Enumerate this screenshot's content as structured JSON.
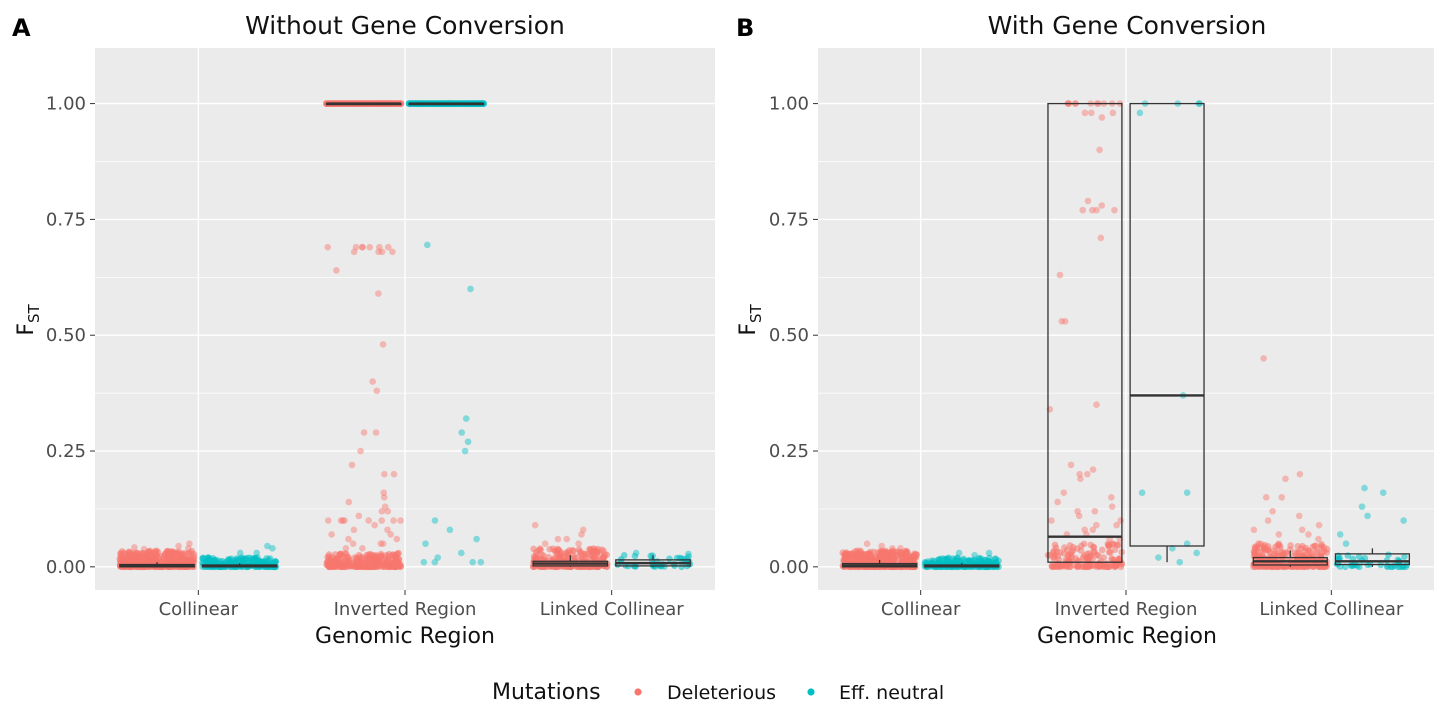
{
  "colors": {
    "deleterious": "#F8766D",
    "neutral": "#00BFC4",
    "panel_bg": "#EBEBEB",
    "grid": "#FFFFFF"
  },
  "legend": {
    "title": "Mutations",
    "items": [
      {
        "label": "Deleterious",
        "color": "#F8766D"
      },
      {
        "label": "Eff. neutral",
        "color": "#00BFC4"
      }
    ]
  },
  "chart_data": [
    {
      "panel": "A",
      "type": "scatter",
      "title": "Without Gene Conversion",
      "xlabel": "Genomic Region",
      "ylabel": "F",
      "ylabel_sub": "ST",
      "categories": [
        "Collinear",
        "Inverted Region",
        "Linked Collinear"
      ],
      "yticks": [
        "0.00",
        "0.25",
        "0.50",
        "0.75",
        "1.00"
      ],
      "ylim": [
        -0.05,
        1.12
      ],
      "series": [
        {
          "name": "Deleterious",
          "groups": [
            {
              "category": "Collinear",
              "offset": -0.2,
              "width": 0.36,
              "cluster": {
                "n": 420,
                "max": 0.035
              },
              "points": [
                0.05,
                0.045,
                0.04,
                0.038,
                0.042
              ]
            },
            {
              "category": "Inverted Region",
              "offset": -0.2,
              "width": 0.36,
              "cluster": {
                "n": 260,
                "max": 0.03
              },
              "points": [
                1.0,
                1.0,
                1.0,
                1.0,
                1.0,
                1.0,
                1.0,
                1.0,
                1.0,
                1.0,
                1.0,
                1.0,
                0.69,
                0.69,
                0.69,
                0.69,
                0.68,
                0.69,
                0.68,
                0.68,
                0.69,
                0.68,
                0.69,
                0.64,
                0.59,
                0.48,
                0.4,
                0.38,
                0.29,
                0.29,
                0.25,
                0.22,
                0.2,
                0.2,
                0.16,
                0.15,
                0.14,
                0.13,
                0.12,
                0.12,
                0.11,
                0.1,
                0.1,
                0.1,
                0.1,
                0.1,
                0.1,
                0.1,
                0.1,
                0.09,
                0.08,
                0.08,
                0.07,
                0.07,
                0.06,
                0.06,
                0.05,
                0.05,
                0.05,
                0.04,
                0.04
              ],
              "median_line": 1.0
            },
            {
              "category": "Linked Collinear",
              "offset": -0.2,
              "width": 0.36,
              "cluster": {
                "n": 260,
                "max": 0.04
              },
              "points": [
                0.09,
                0.08,
                0.07,
                0.06,
                0.06,
                0.05,
                0.05
              ]
            }
          ]
        },
        {
          "name": "Eff. neutral",
          "groups": [
            {
              "category": "Collinear",
              "offset": 0.2,
              "width": 0.36,
              "cluster": {
                "n": 200,
                "max": 0.02
              },
              "points": [
                0.045,
                0.04,
                0.03,
                0.03
              ]
            },
            {
              "category": "Inverted Region",
              "offset": 0.2,
              "width": 0.36,
              "cluster": {
                "n": 0,
                "max": 0
              },
              "points": [
                1.0,
                1.0,
                1.0,
                1.0,
                1.0,
                1.0,
                1.0,
                1.0,
                1.0,
                1.0,
                0.695,
                0.6,
                0.32,
                0.29,
                0.27,
                0.25,
                0.1,
                0.08,
                0.06,
                0.05,
                0.03,
                0.02,
                0.01,
                0.01,
                0.01,
                0.01
              ],
              "median_line": 1.0
            },
            {
              "category": "Linked Collinear",
              "offset": 0.2,
              "width": 0.36,
              "cluster": {
                "n": 40,
                "max": 0.025
              },
              "points": [
                0.03,
                0.028
              ]
            }
          ]
        }
      ],
      "boxes": [
        {
          "category": "Collinear",
          "offset": -0.2,
          "q1": 0.0,
          "median": 0.003,
          "q3": 0.005,
          "whisker_lo": 0.0,
          "whisker_hi": 0.01
        },
        {
          "category": "Collinear",
          "offset": 0.2,
          "q1": 0.0,
          "median": 0.002,
          "q3": 0.004,
          "whisker_lo": 0.0,
          "whisker_hi": 0.008
        },
        {
          "category": "Inverted Region",
          "offset": -0.2,
          "q1": 1.0,
          "median": 1.0,
          "q3": 1.0,
          "whisker_lo": 1.0,
          "whisker_hi": 1.0
        },
        {
          "category": "Inverted Region",
          "offset": 0.2,
          "q1": 1.0,
          "median": 1.0,
          "q3": 1.0,
          "whisker_lo": 1.0,
          "whisker_hi": 1.0
        },
        {
          "category": "Linked Collinear",
          "offset": -0.2,
          "q1": 0.002,
          "median": 0.007,
          "q3": 0.012,
          "whisker_lo": 0.0,
          "whisker_hi": 0.025
        },
        {
          "category": "Linked Collinear",
          "offset": 0.2,
          "q1": 0.002,
          "median": 0.008,
          "q3": 0.015,
          "whisker_lo": 0.0,
          "whisker_hi": 0.025
        }
      ]
    },
    {
      "panel": "B",
      "type": "scatter",
      "title": "With Gene Conversion",
      "xlabel": "Genomic Region",
      "ylabel": "F",
      "ylabel_sub": "ST",
      "categories": [
        "Collinear",
        "Inverted Region",
        "Linked Collinear"
      ],
      "yticks": [
        "0.00",
        "0.25",
        "0.50",
        "0.75",
        "1.00"
      ],
      "ylim": [
        -0.05,
        1.12
      ],
      "series": [
        {
          "name": "Deleterious",
          "groups": [
            {
              "category": "Collinear",
              "offset": -0.2,
              "width": 0.36,
              "cluster": {
                "n": 420,
                "max": 0.035
              },
              "points": [
                0.05,
                0.045,
                0.04,
                0.04
              ]
            },
            {
              "category": "Inverted Region",
              "offset": -0.2,
              "width": 0.36,
              "cluster": {
                "n": 150,
                "max": 0.05
              },
              "points": [
                1.0,
                1.0,
                1.0,
                1.0,
                1.0,
                1.0,
                1.0,
                1.0,
                1.0,
                1.0,
                1.0,
                0.98,
                0.98,
                0.98,
                0.97,
                0.9,
                0.79,
                0.78,
                0.77,
                0.77,
                0.77,
                0.77,
                0.71,
                0.63,
                0.53,
                0.53,
                0.35,
                0.34,
                0.22,
                0.21,
                0.2,
                0.2,
                0.19,
                0.16,
                0.15,
                0.14,
                0.13,
                0.12,
                0.12,
                0.11,
                0.1,
                0.1,
                0.09,
                0.09,
                0.08,
                0.08,
                0.07,
                0.07,
                0.06,
                0.06
              ]
            },
            {
              "category": "Linked Collinear",
              "offset": -0.2,
              "width": 0.36,
              "cluster": {
                "n": 260,
                "max": 0.05
              },
              "points": [
                0.45,
                0.2,
                0.19,
                0.15,
                0.15,
                0.12,
                0.11,
                0.1,
                0.09,
                0.08,
                0.08,
                0.07,
                0.07,
                0.06
              ]
            }
          ]
        },
        {
          "name": "Eff. neutral",
          "groups": [
            {
              "category": "Collinear",
              "offset": 0.2,
              "width": 0.36,
              "cluster": {
                "n": 200,
                "max": 0.02
              },
              "points": [
                0.03,
                0.03,
                0.025
              ]
            },
            {
              "category": "Inverted Region",
              "offset": 0.2,
              "width": 0.36,
              "cluster": {
                "n": 0,
                "max": 0
              },
              "points": [
                1.0,
                1.0,
                1.0,
                1.0,
                0.98,
                0.37,
                0.16,
                0.16,
                0.05,
                0.04,
                0.03,
                0.02,
                0.01
              ]
            },
            {
              "category": "Linked Collinear",
              "offset": 0.2,
              "width": 0.36,
              "cluster": {
                "n": 40,
                "max": 0.03
              },
              "points": [
                0.17,
                0.16,
                0.13,
                0.11,
                0.1,
                0.07,
                0.05
              ]
            }
          ]
        }
      ],
      "boxes": [
        {
          "category": "Collinear",
          "offset": -0.2,
          "q1": 0.0,
          "median": 0.003,
          "q3": 0.007,
          "whisker_lo": 0.0,
          "whisker_hi": 0.015
        },
        {
          "category": "Collinear",
          "offset": 0.2,
          "q1": 0.0,
          "median": 0.002,
          "q3": 0.004,
          "whisker_lo": 0.0,
          "whisker_hi": 0.008
        },
        {
          "category": "Inverted Region",
          "offset": -0.2,
          "q1": 0.01,
          "median": 0.065,
          "q3": 1.0,
          "whisker_lo": 0.01,
          "whisker_hi": 1.0
        },
        {
          "category": "Inverted Region",
          "offset": 0.2,
          "q1": 0.045,
          "median": 0.37,
          "q3": 1.0,
          "whisker_lo": 0.01,
          "whisker_hi": 1.0
        },
        {
          "category": "Linked Collinear",
          "offset": -0.2,
          "q1": 0.004,
          "median": 0.012,
          "q3": 0.02,
          "whisker_lo": 0.0,
          "whisker_hi": 0.035
        },
        {
          "category": "Linked Collinear",
          "offset": 0.2,
          "q1": 0.005,
          "median": 0.012,
          "q3": 0.028,
          "whisker_lo": 0.0,
          "whisker_hi": 0.04
        }
      ]
    }
  ]
}
